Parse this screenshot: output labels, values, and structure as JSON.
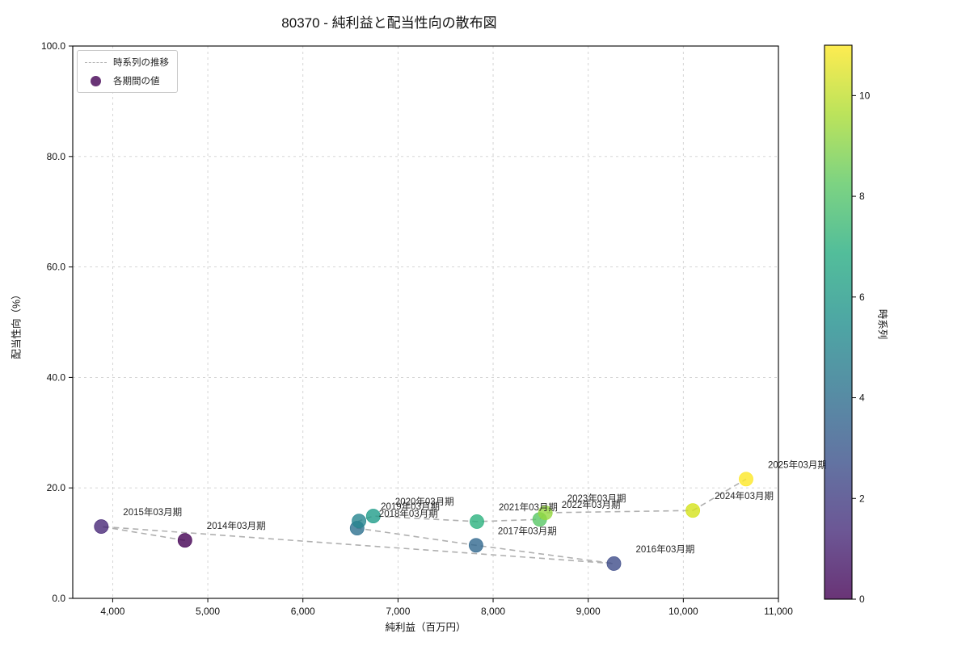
{
  "title": "80370 - 純利益と配当性向の散布図",
  "legend": {
    "line_label": "時系列の推移",
    "point_label": "各期間の値"
  },
  "colors": {
    "trend_line": "#b0b0b0",
    "grid_line": "#d0d0d0",
    "legend_marker": "#440154",
    "axis": "#000000"
  },
  "chart_data": {
    "type": "scatter",
    "title": "80370 - 純利益と配当性向の散布図",
    "xlabel": "純利益（百万円）",
    "ylabel": "配当性向（%）",
    "colorbar_label": "時系列",
    "xlim": [
      3580,
      11000
    ],
    "ylim": [
      0,
      100
    ],
    "grid": true,
    "legend_position": "upper left",
    "marker_alpha": 0.8,
    "x_ticks": [
      {
        "v": 4000,
        "label": "4,000"
      },
      {
        "v": 5000,
        "label": "5,000"
      },
      {
        "v": 6000,
        "label": "6,000"
      },
      {
        "v": 7000,
        "label": "7,000"
      },
      {
        "v": 8000,
        "label": "8,000"
      },
      {
        "v": 9000,
        "label": "9,000"
      },
      {
        "v": 10000,
        "label": "10,000"
      },
      {
        "v": 11000,
        "label": "11,000"
      }
    ],
    "y_ticks": [
      {
        "v": 0,
        "label": "0.0"
      },
      {
        "v": 20,
        "label": "20.0"
      },
      {
        "v": 40,
        "label": "40.0"
      },
      {
        "v": 60,
        "label": "60.0"
      },
      {
        "v": 80,
        "label": "80.0"
      },
      {
        "v": 100,
        "label": "100.0"
      }
    ],
    "colorbar": {
      "min": 0,
      "max": 11,
      "ticks": [
        0,
        2,
        4,
        6,
        8,
        10
      ],
      "gradient": [
        {
          "p": 0.0,
          "c": "#440154"
        },
        {
          "p": 0.125,
          "c": "#472d7b"
        },
        {
          "p": 0.25,
          "c": "#3b518b"
        },
        {
          "p": 0.375,
          "c": "#2c718e"
        },
        {
          "p": 0.5,
          "c": "#21908d"
        },
        {
          "p": 0.625,
          "c": "#27ad81"
        },
        {
          "p": 0.75,
          "c": "#5cc863"
        },
        {
          "p": 0.875,
          "c": "#aadc32"
        },
        {
          "p": 1.0,
          "c": "#fde725"
        }
      ]
    },
    "points": [
      {
        "label": "2014年03月期",
        "x": 4760,
        "y": 10.5,
        "t": 0,
        "color": "#440154"
      },
      {
        "label": "2015年03月期",
        "x": 3880,
        "y": 13.0,
        "t": 1,
        "color": "#482878"
      },
      {
        "label": "2016年03月期",
        "x": 9270,
        "y": 6.3,
        "t": 2,
        "color": "#3e4c8a"
      },
      {
        "label": "2017年03月期",
        "x": 7820,
        "y": 9.6,
        "t": 3,
        "color": "#31688e"
      },
      {
        "label": "2018年03月期",
        "x": 6570,
        "y": 12.7,
        "t": 4,
        "color": "#2d708e"
      },
      {
        "label": "2019年03月期",
        "x": 6590,
        "y": 14.0,
        "t": 5,
        "color": "#25858e"
      },
      {
        "label": "2020年03月期",
        "x": 6740,
        "y": 14.9,
        "t": 6,
        "color": "#1f9c89"
      },
      {
        "label": "2021年03月期",
        "x": 7830,
        "y": 13.9,
        "t": 7,
        "color": "#2cb17e"
      },
      {
        "label": "2022年03月期",
        "x": 8490,
        "y": 14.3,
        "t": 8,
        "color": "#58c765"
      },
      {
        "label": "2023年03月期",
        "x": 8550,
        "y": 15.5,
        "t": 9,
        "color": "#95d840"
      },
      {
        "label": "2024年03月期",
        "x": 10100,
        "y": 15.9,
        "t": 10,
        "color": "#d4e21a"
      },
      {
        "label": "2025年03月期",
        "x": 10660,
        "y": 21.6,
        "t": 11,
        "color": "#fde725"
      }
    ]
  }
}
